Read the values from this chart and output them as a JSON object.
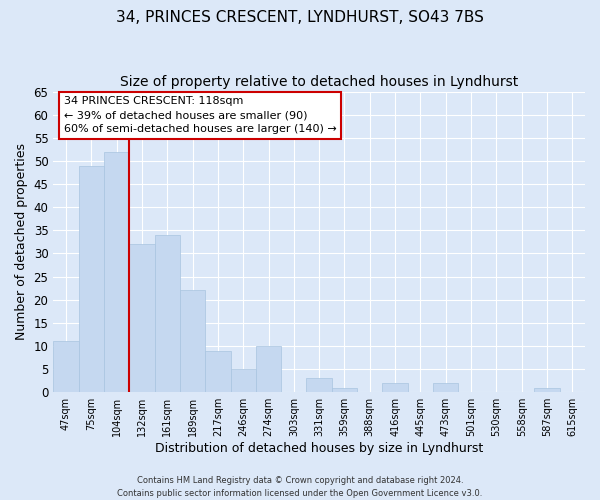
{
  "title": "34, PRINCES CRESCENT, LYNDHURST, SO43 7BS",
  "subtitle": "Size of property relative to detached houses in Lyndhurst",
  "xlabel": "Distribution of detached houses by size in Lyndhurst",
  "ylabel": "Number of detached properties",
  "bar_color": "#c5d8f0",
  "bar_edge_color": "#a8c4e0",
  "bin_labels": [
    "47sqm",
    "75sqm",
    "104sqm",
    "132sqm",
    "161sqm",
    "189sqm",
    "217sqm",
    "246sqm",
    "274sqm",
    "303sqm",
    "331sqm",
    "359sqm",
    "388sqm",
    "416sqm",
    "445sqm",
    "473sqm",
    "501sqm",
    "530sqm",
    "558sqm",
    "587sqm",
    "615sqm"
  ],
  "bar_heights": [
    11,
    49,
    52,
    32,
    34,
    22,
    9,
    5,
    10,
    0,
    3,
    1,
    0,
    2,
    0,
    2,
    0,
    0,
    0,
    1,
    0
  ],
  "ylim": [
    0,
    65
  ],
  "yticks": [
    0,
    5,
    10,
    15,
    20,
    25,
    30,
    35,
    40,
    45,
    50,
    55,
    60,
    65
  ],
  "vline_color": "#cc0000",
  "annotation_text": "34 PRINCES CRESCENT: 118sqm\n← 39% of detached houses are smaller (90)\n60% of semi-detached houses are larger (140) →",
  "annotation_box_color": "#ffffff",
  "annotation_box_edge": "#cc0000",
  "footer_line1": "Contains HM Land Registry data © Crown copyright and database right 2024.",
  "footer_line2": "Contains public sector information licensed under the Open Government Licence v3.0.",
  "background_color": "#dce8f8",
  "plot_bg_color": "#dce8f8",
  "grid_color": "#ffffff",
  "title_fontsize": 11,
  "subtitle_fontsize": 10
}
